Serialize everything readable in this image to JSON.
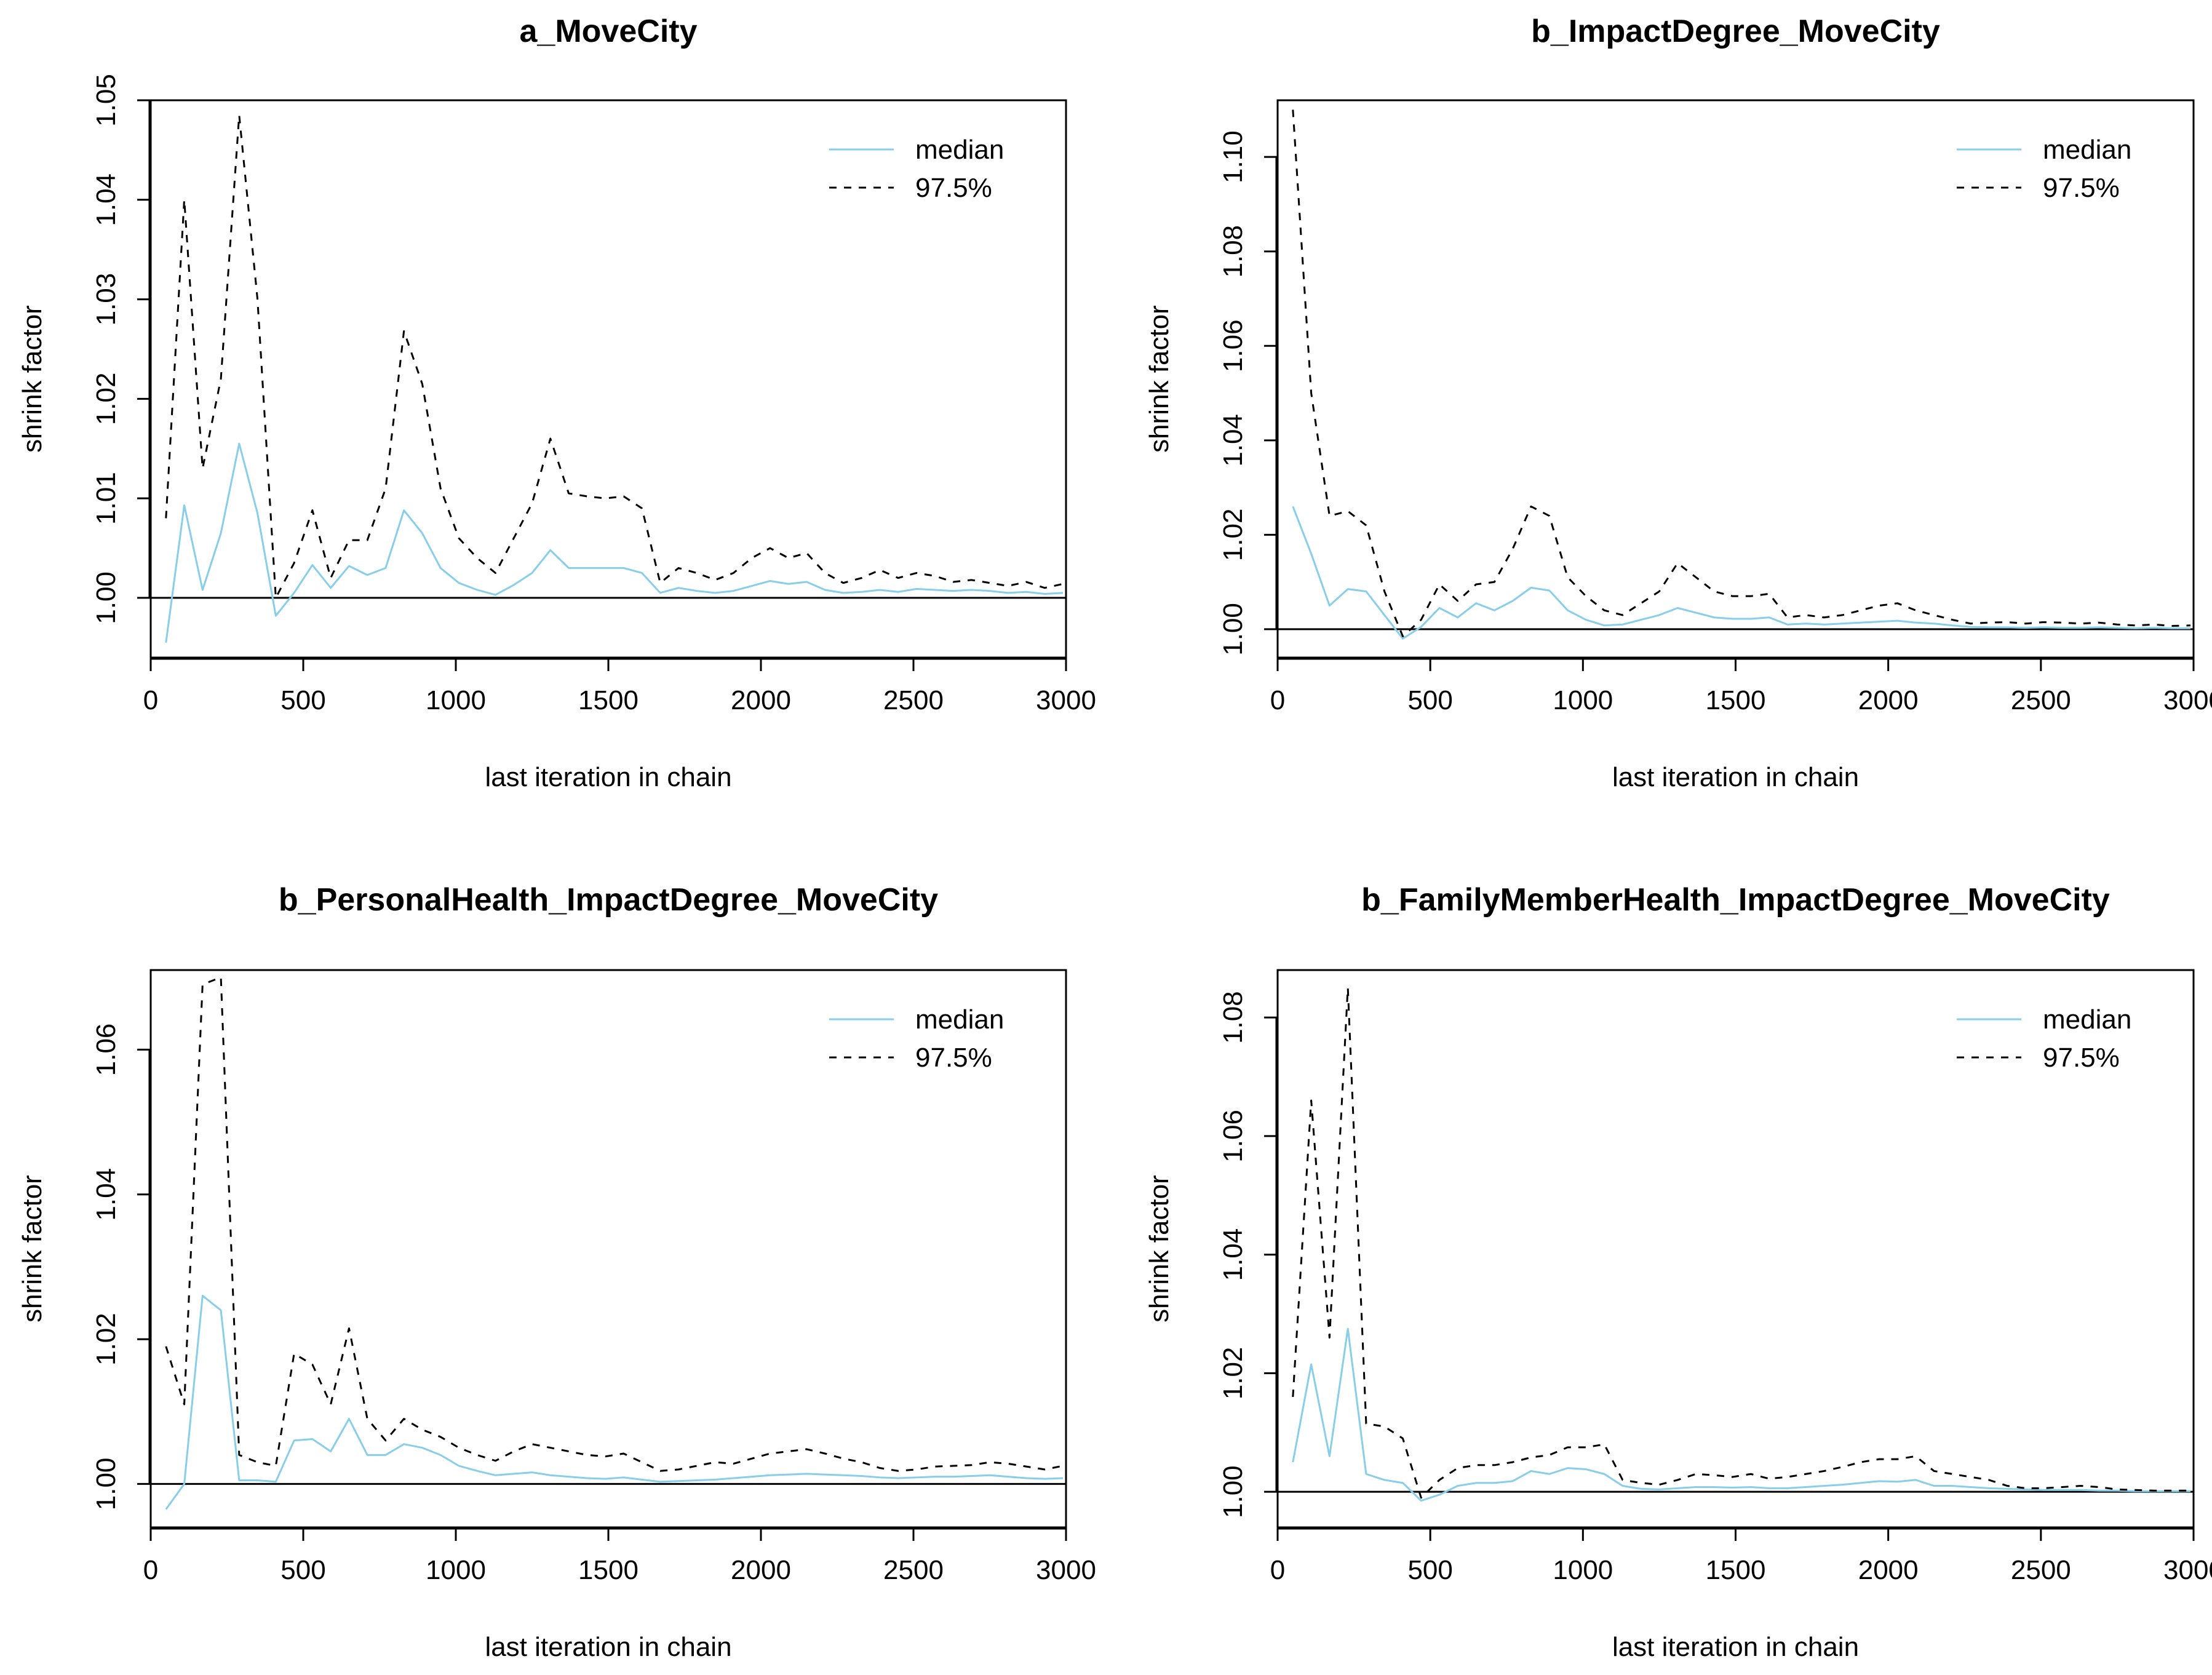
{
  "colors": {
    "median": "#87ceeb",
    "q975": "#000000",
    "reference": "#000000"
  },
  "legend": {
    "median_label": "median",
    "q975_label": "97.5%",
    "position": "top-right"
  },
  "chart_data": [
    {
      "type": "line",
      "title": "a_MoveCity",
      "xlabel": "last iteration in chain",
      "ylabel": "shrink factor",
      "xlim": [
        0,
        3000
      ],
      "ylim": [
        0.994,
        1.05
      ],
      "xticks": [
        0,
        500,
        1000,
        1500,
        2000,
        2500,
        3000
      ],
      "xtick_labels": [
        "0",
        "500",
        "1000",
        "1500",
        "2000",
        "2500",
        "3000"
      ],
      "yticks": [
        1.0,
        1.01,
        1.02,
        1.03,
        1.04,
        1.05
      ],
      "ytick_labels": [
        "1.00",
        "1.01",
        "1.02",
        "1.03",
        "1.04",
        "1.05"
      ],
      "reference_line": 1.0,
      "x": [
        50,
        110,
        170,
        230,
        290,
        350,
        410,
        470,
        530,
        590,
        650,
        710,
        770,
        830,
        890,
        950,
        1010,
        1070,
        1130,
        1190,
        1250,
        1310,
        1370,
        1430,
        1490,
        1550,
        1610,
        1670,
        1730,
        1790,
        1850,
        1910,
        1970,
        2030,
        2090,
        2150,
        2210,
        2270,
        2330,
        2390,
        2450,
        2510,
        2570,
        2630,
        2690,
        2750,
        2810,
        2870,
        2930,
        2990
      ],
      "series": [
        {
          "name": "median",
          "values": [
            0.9955,
            1.0093,
            1.0008,
            1.0065,
            1.0155,
            1.0085,
            0.9982,
            1.0005,
            1.0033,
            1.001,
            1.0032,
            1.0023,
            1.003,
            1.0088,
            1.0065,
            1.003,
            1.0015,
            1.0008,
            1.0003,
            1.0013,
            1.0025,
            1.0048,
            1.003,
            1.003,
            1.003,
            1.003,
            1.0025,
            1.0005,
            1.001,
            1.0007,
            1.0005,
            1.0007,
            1.0012,
            1.0017,
            1.0014,
            1.0016,
            1.0008,
            1.0005,
            1.0006,
            1.0008,
            1.0006,
            1.0009,
            1.0008,
            1.0007,
            1.0008,
            1.0007,
            1.0005,
            1.0006,
            1.0004,
            1.0005
          ]
        },
        {
          "name": "97.5%",
          "values": [
            1.008,
            1.04,
            1.013,
            1.022,
            1.0485,
            1.03,
            1.0,
            1.0035,
            1.0088,
            1.002,
            1.0058,
            1.0058,
            1.011,
            1.0268,
            1.0215,
            1.011,
            1.006,
            1.004,
            1.0025,
            1.006,
            1.0095,
            1.016,
            1.0105,
            1.0102,
            1.01,
            1.0102,
            1.009,
            1.0015,
            1.003,
            1.0025,
            1.0018,
            1.0025,
            1.004,
            1.005,
            1.004,
            1.0045,
            1.0025,
            1.0015,
            1.002,
            1.0028,
            1.002,
            1.0025,
            1.0022,
            1.0016,
            1.0018,
            1.0015,
            1.0012,
            1.0016,
            1.001,
            1.0014
          ]
        }
      ]
    },
    {
      "type": "line",
      "title": "b_ImpactDegree_MoveCity",
      "xlabel": "last iteration in chain",
      "ylabel": "shrink factor",
      "xlim": [
        0,
        3000
      ],
      "ylim": [
        0.994,
        1.112
      ],
      "xticks": [
        0,
        500,
        1000,
        1500,
        2000,
        2500,
        3000
      ],
      "xtick_labels": [
        "0",
        "500",
        "1000",
        "1500",
        "2000",
        "2500",
        "3000"
      ],
      "yticks": [
        1.0,
        1.02,
        1.04,
        1.06,
        1.08,
        1.1
      ],
      "ytick_labels": [
        "1.00",
        "1.02",
        "1.04",
        "1.06",
        "1.08",
        "1.10"
      ],
      "reference_line": 1.0,
      "x": [
        50,
        110,
        170,
        230,
        290,
        350,
        410,
        470,
        530,
        590,
        650,
        710,
        770,
        830,
        890,
        950,
        1010,
        1070,
        1130,
        1190,
        1250,
        1310,
        1370,
        1430,
        1490,
        1550,
        1610,
        1670,
        1730,
        1790,
        1850,
        1910,
        1970,
        2030,
        2090,
        2150,
        2210,
        2270,
        2330,
        2390,
        2450,
        2510,
        2570,
        2630,
        2690,
        2750,
        2810,
        2870,
        2930,
        2990
      ],
      "series": [
        {
          "name": "median",
          "values": [
            1.026,
            1.016,
            1.005,
            1.0085,
            1.008,
            1.003,
            0.998,
            1.0005,
            1.0045,
            1.0025,
            1.0055,
            1.004,
            1.006,
            1.0088,
            1.0082,
            1.004,
            1.002,
            1.0008,
            1.001,
            1.002,
            1.003,
            1.0045,
            1.0035,
            1.0025,
            1.0022,
            1.0022,
            1.0025,
            1.001,
            1.0012,
            1.001,
            1.0012,
            1.0014,
            1.0016,
            1.0018,
            1.0014,
            1.0012,
            1.0008,
            1.0005,
            1.0004,
            1.0004,
            1.0003,
            1.0004,
            1.0003,
            1.0003,
            1.0004,
            1.0003,
            1.0002,
            1.0003,
            1.0002,
            1.0002
          ]
        },
        {
          "name": "97.5%",
          "values": [
            1.11,
            1.05,
            1.024,
            1.025,
            1.022,
            1.008,
            0.9985,
            1.002,
            1.0095,
            1.006,
            1.0095,
            1.01,
            1.017,
            1.026,
            1.024,
            1.011,
            1.007,
            1.004,
            1.003,
            1.0055,
            1.008,
            1.014,
            1.011,
            1.008,
            1.007,
            1.007,
            1.0075,
            1.0025,
            1.003,
            1.0025,
            1.003,
            1.004,
            1.005,
            1.0055,
            1.004,
            1.003,
            1.002,
            1.0012,
            1.0014,
            1.0015,
            1.0012,
            1.0015,
            1.0014,
            1.0012,
            1.0014,
            1.001,
            1.0008,
            1.001,
            1.0007,
            1.0008
          ]
        }
      ]
    },
    {
      "type": "line",
      "title": "b_PersonalHealth_ImpactDegree_MoveCity",
      "xlabel": "last iteration in chain",
      "ylabel": "shrink factor",
      "xlim": [
        0,
        3000
      ],
      "ylim": [
        0.994,
        1.071
      ],
      "xticks": [
        0,
        500,
        1000,
        1500,
        2000,
        2500,
        3000
      ],
      "xtick_labels": [
        "0",
        "500",
        "1000",
        "1500",
        "2000",
        "2500",
        "3000"
      ],
      "yticks": [
        1.0,
        1.02,
        1.04,
        1.06
      ],
      "ytick_labels": [
        "1.00",
        "1.02",
        "1.04",
        "1.06"
      ],
      "reference_line": 1.0,
      "x": [
        50,
        110,
        170,
        230,
        290,
        350,
        410,
        470,
        530,
        590,
        650,
        710,
        770,
        830,
        890,
        950,
        1010,
        1070,
        1130,
        1190,
        1250,
        1310,
        1370,
        1430,
        1490,
        1550,
        1610,
        1670,
        1730,
        1790,
        1850,
        1910,
        1970,
        2030,
        2090,
        2150,
        2210,
        2270,
        2330,
        2390,
        2450,
        2510,
        2570,
        2630,
        2690,
        2750,
        2810,
        2870,
        2930,
        2990
      ],
      "series": [
        {
          "name": "median",
          "values": [
            0.9965,
            1.0,
            1.026,
            1.024,
            1.0005,
            1.0005,
            1.0003,
            1.006,
            1.0062,
            1.0045,
            1.009,
            1.004,
            1.004,
            1.0055,
            1.005,
            1.004,
            1.0025,
            1.0018,
            1.0012,
            1.0014,
            1.0016,
            1.0012,
            1.001,
            1.0008,
            1.0007,
            1.0009,
            1.0006,
            1.0003,
            1.0004,
            1.0005,
            1.0006,
            1.0008,
            1.001,
            1.0012,
            1.0013,
            1.0014,
            1.0013,
            1.0012,
            1.0011,
            1.0009,
            1.0008,
            1.0009,
            1.001,
            1.001,
            1.0011,
            1.0012,
            1.001,
            1.0008,
            1.0007,
            1.0008
          ]
        },
        {
          "name": "97.5%",
          "values": [
            1.019,
            1.011,
            1.069,
            1.07,
            1.004,
            1.003,
            1.0025,
            1.018,
            1.0165,
            1.011,
            1.0215,
            1.009,
            1.006,
            1.009,
            1.0075,
            1.0065,
            1.005,
            1.004,
            1.0032,
            1.0045,
            1.0055,
            1.005,
            1.0045,
            1.004,
            1.0038,
            1.0042,
            1.003,
            1.0018,
            1.002,
            1.0025,
            1.003,
            1.0028,
            1.0035,
            1.0042,
            1.0045,
            1.0048,
            1.0042,
            1.0035,
            1.003,
            1.0022,
            1.0018,
            1.002,
            1.0024,
            1.0025,
            1.0026,
            1.003,
            1.0028,
            1.0024,
            1.002,
            1.0025
          ]
        }
      ]
    },
    {
      "type": "line",
      "title": "b_FamilyMemberHealth_ImpactDegree_MoveCity",
      "xlabel": "last iteration in chain",
      "ylabel": "shrink factor",
      "xlim": [
        0,
        3000
      ],
      "ylim": [
        0.994,
        1.088
      ],
      "xticks": [
        0,
        500,
        1000,
        1500,
        2000,
        2500,
        3000
      ],
      "xtick_labels": [
        "0",
        "500",
        "1000",
        "1500",
        "2000",
        "2500",
        "3000"
      ],
      "yticks": [
        1.0,
        1.02,
        1.04,
        1.06,
        1.08
      ],
      "ytick_labels": [
        "1.00",
        "1.02",
        "1.04",
        "1.06",
        "1.08"
      ],
      "reference_line": 1.0,
      "x": [
        50,
        110,
        170,
        230,
        290,
        350,
        410,
        470,
        530,
        590,
        650,
        710,
        770,
        830,
        890,
        950,
        1010,
        1070,
        1130,
        1190,
        1250,
        1310,
        1370,
        1430,
        1490,
        1550,
        1610,
        1670,
        1730,
        1790,
        1850,
        1910,
        1970,
        2030,
        2090,
        2150,
        2210,
        2270,
        2330,
        2390,
        2450,
        2510,
        2570,
        2630,
        2690,
        2750,
        2810,
        2870,
        2930,
        2990
      ],
      "series": [
        {
          "name": "median",
          "values": [
            1.005,
            1.0215,
            1.006,
            1.0275,
            1.003,
            1.002,
            1.0015,
            0.9985,
            0.9995,
            1.001,
            1.0015,
            1.0015,
            1.0018,
            1.0035,
            1.003,
            1.004,
            1.0038,
            1.003,
            1.001,
            1.0005,
            1.0004,
            1.0006,
            1.0008,
            1.0008,
            1.0007,
            1.0008,
            1.0006,
            1.0006,
            1.0008,
            1.001,
            1.0012,
            1.0015,
            1.0018,
            1.0017,
            1.002,
            1.001,
            1.001,
            1.0008,
            1.0006,
            1.0005,
            1.0004,
            1.0003,
            1.0003,
            1.0003,
            1.0002,
            1.0002,
            1.0001,
            1.0001,
            1.0001,
            1.0001
          ]
        },
        {
          "name": "97.5%",
          "values": [
            1.016,
            1.066,
            1.026,
            1.085,
            1.0115,
            1.011,
            1.009,
            0.999,
            1.002,
            1.004,
            1.0045,
            1.0045,
            1.005,
            1.0058,
            1.0062,
            1.0075,
            1.0075,
            1.008,
            1.002,
            1.0015,
            1.0012,
            1.002,
            1.003,
            1.0028,
            1.0025,
            1.003,
            1.0022,
            1.0025,
            1.003,
            1.0035,
            1.0042,
            1.005,
            1.0055,
            1.0055,
            1.006,
            1.0035,
            1.003,
            1.0025,
            1.002,
            1.001,
            1.0006,
            1.0006,
            1.0008,
            1.001,
            1.0008,
            1.0004,
            1.0003,
            1.0002,
            1.0002,
            1.0002
          ]
        }
      ]
    }
  ]
}
